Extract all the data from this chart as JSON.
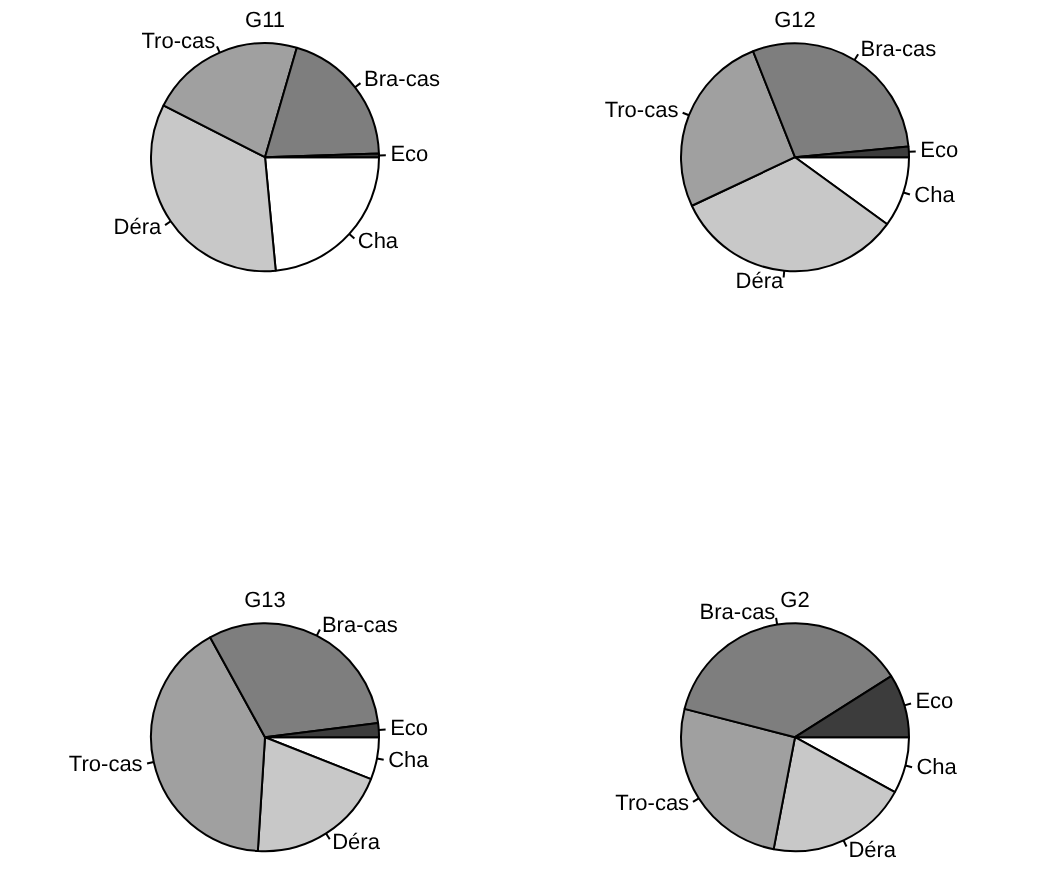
{
  "chart_data": [
    {
      "type": "pie",
      "title": "G11",
      "categories": [
        "Cha",
        "Déra",
        "Tro-cas",
        "Bra-cas",
        "Eco"
      ],
      "values": [
        23.5,
        34,
        22,
        20,
        0.5
      ],
      "colors": [
        "#ffffff",
        "#c8c8c8",
        "#a0a0a0",
        "#7e7e7e",
        "#3c3c3c"
      ]
    },
    {
      "type": "pie",
      "title": "G12",
      "categories": [
        "Cha",
        "Déra",
        "Tro-cas",
        "Bra-cas",
        "Eco"
      ],
      "values": [
        10,
        33,
        26,
        29.5,
        1.5
      ],
      "colors": [
        "#ffffff",
        "#c8c8c8",
        "#a0a0a0",
        "#7e7e7e",
        "#3c3c3c"
      ]
    },
    {
      "type": "pie",
      "title": "G13",
      "categories": [
        "Cha",
        "Déra",
        "Tro-cas",
        "Bra-cas",
        "Eco"
      ],
      "values": [
        6,
        20,
        41,
        31,
        2
      ],
      "colors": [
        "#ffffff",
        "#c8c8c8",
        "#a0a0a0",
        "#7e7e7e",
        "#3c3c3c"
      ]
    },
    {
      "type": "pie",
      "title": "G2",
      "categories": [
        "Cha",
        "Déra",
        "Tro-cas",
        "Bra-cas",
        "Eco"
      ],
      "values": [
        8,
        20,
        26,
        37,
        9
      ],
      "colors": [
        "#ffffff",
        "#c8c8c8",
        "#a0a0a0",
        "#7e7e7e",
        "#3c3c3c"
      ]
    }
  ]
}
